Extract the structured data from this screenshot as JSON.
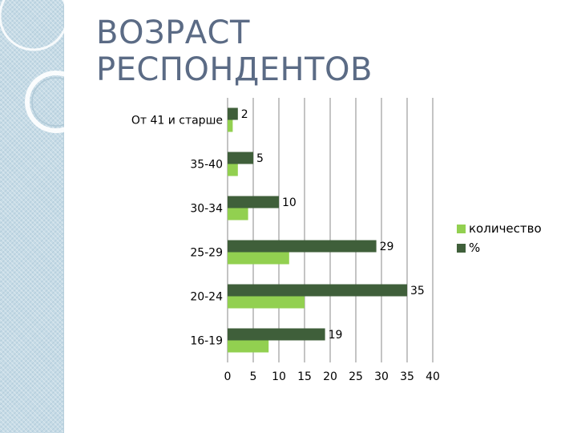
{
  "slide": {
    "title_lines": [
      "ВОЗРАСТ",
      "РЕСПОНДЕНТОВ"
    ],
    "accent_color": "#5b6b85",
    "sidebar_color": "#c6dbe6"
  },
  "chart_data": {
    "type": "bar",
    "orientation": "horizontal",
    "categories": [
      "16-19",
      "20-24",
      "25-29",
      "30-34",
      "35-40",
      "От 41 и старше"
    ],
    "series": [
      {
        "name": "количество",
        "values": [
          8,
          15,
          12,
          4,
          2,
          1
        ],
        "color": "#92d050",
        "data_labels": false
      },
      {
        "name": "%",
        "values": [
          19,
          35,
          29,
          10,
          5,
          2
        ],
        "color": "#3f5f3a",
        "data_labels": true
      }
    ],
    "xlim": [
      0,
      40
    ],
    "xticks": [
      0,
      5,
      10,
      15,
      20,
      25,
      30,
      35,
      40
    ],
    "grid": "vertical",
    "legend": "right"
  }
}
